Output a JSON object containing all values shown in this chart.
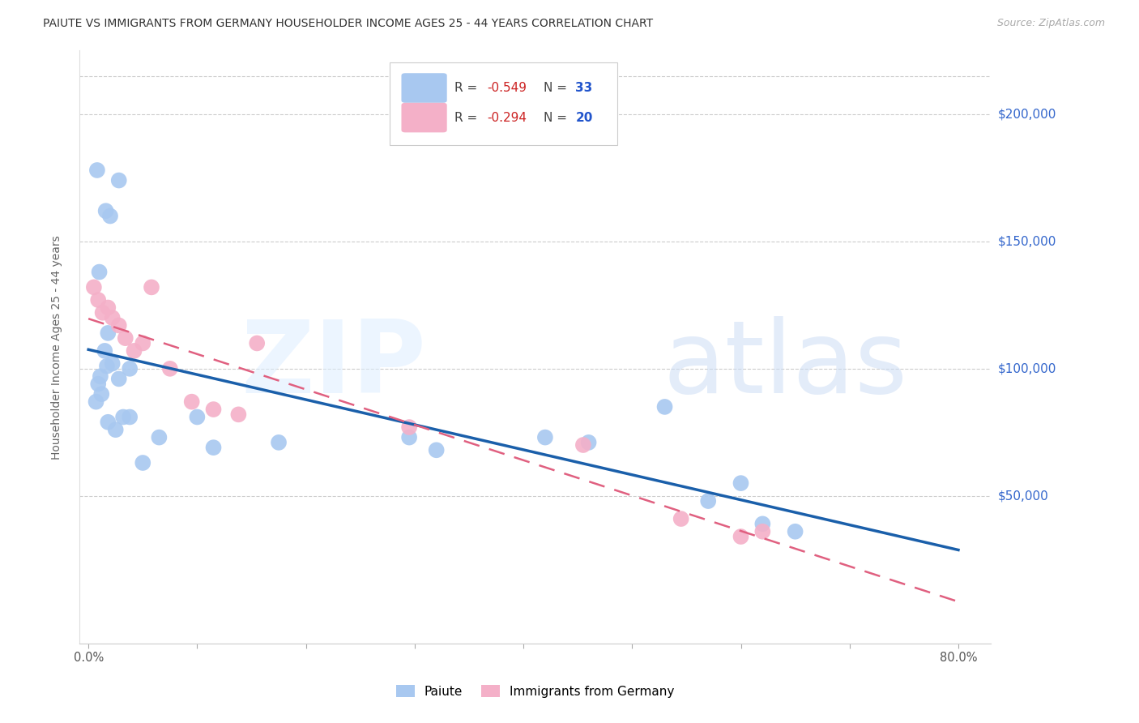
{
  "title": "PAIUTE VS IMMIGRANTS FROM GERMANY HOUSEHOLDER INCOME AGES 25 - 44 YEARS CORRELATION CHART",
  "source": "Source: ZipAtlas.com",
  "ylabel": "Householder Income Ages 25 - 44 years",
  "xtick_positions": [
    0.0,
    0.1,
    0.2,
    0.3,
    0.4,
    0.5,
    0.6,
    0.7,
    0.8
  ],
  "xtick_labels": [
    "0.0%",
    "",
    "",
    "",
    "",
    "",
    "",
    "",
    "80.0%"
  ],
  "ytick_values": [
    200000,
    150000,
    100000,
    50000
  ],
  "ytick_labels": [
    "$200,000",
    "$150,000",
    "$100,000",
    "$50,000"
  ],
  "xlim": [
    -0.008,
    0.83
  ],
  "ylim": [
    -8000,
    225000
  ],
  "paiute_color": "#a8c8f0",
  "germany_color": "#f4b0c8",
  "paiute_line_color": "#1a5faa",
  "germany_line_color": "#e06080",
  "background_color": "#ffffff",
  "grid_color": "#cccccc",
  "paiute_x": [
    0.008,
    0.016,
    0.02,
    0.028,
    0.01,
    0.015,
    0.018,
    0.009,
    0.012,
    0.007,
    0.011,
    0.017,
    0.022,
    0.028,
    0.038,
    0.018,
    0.025,
    0.032,
    0.038,
    0.05,
    0.065,
    0.1,
    0.115,
    0.175,
    0.295,
    0.32,
    0.42,
    0.46,
    0.53,
    0.57,
    0.6,
    0.62,
    0.65
  ],
  "paiute_y": [
    178000,
    162000,
    160000,
    174000,
    138000,
    107000,
    114000,
    94000,
    90000,
    87000,
    97000,
    101000,
    102000,
    96000,
    100000,
    79000,
    76000,
    81000,
    81000,
    63000,
    73000,
    81000,
    69000,
    71000,
    73000,
    68000,
    73000,
    71000,
    85000,
    48000,
    55000,
    39000,
    36000
  ],
  "germany_x": [
    0.005,
    0.009,
    0.013,
    0.018,
    0.022,
    0.028,
    0.034,
    0.042,
    0.05,
    0.058,
    0.075,
    0.095,
    0.115,
    0.138,
    0.155,
    0.295,
    0.455,
    0.545,
    0.6,
    0.62
  ],
  "germany_y": [
    132000,
    127000,
    122000,
    124000,
    120000,
    117000,
    112000,
    107000,
    110000,
    132000,
    100000,
    87000,
    84000,
    82000,
    110000,
    77000,
    70000,
    41000,
    34000,
    36000
  ],
  "legend_r1": "R = -0.549",
  "legend_n1": "N = 33",
  "legend_r2": "R = -0.294",
  "legend_n2": "N = 20",
  "legend_bottom_labels": [
    "Paiute",
    "Immigrants from Germany"
  ]
}
